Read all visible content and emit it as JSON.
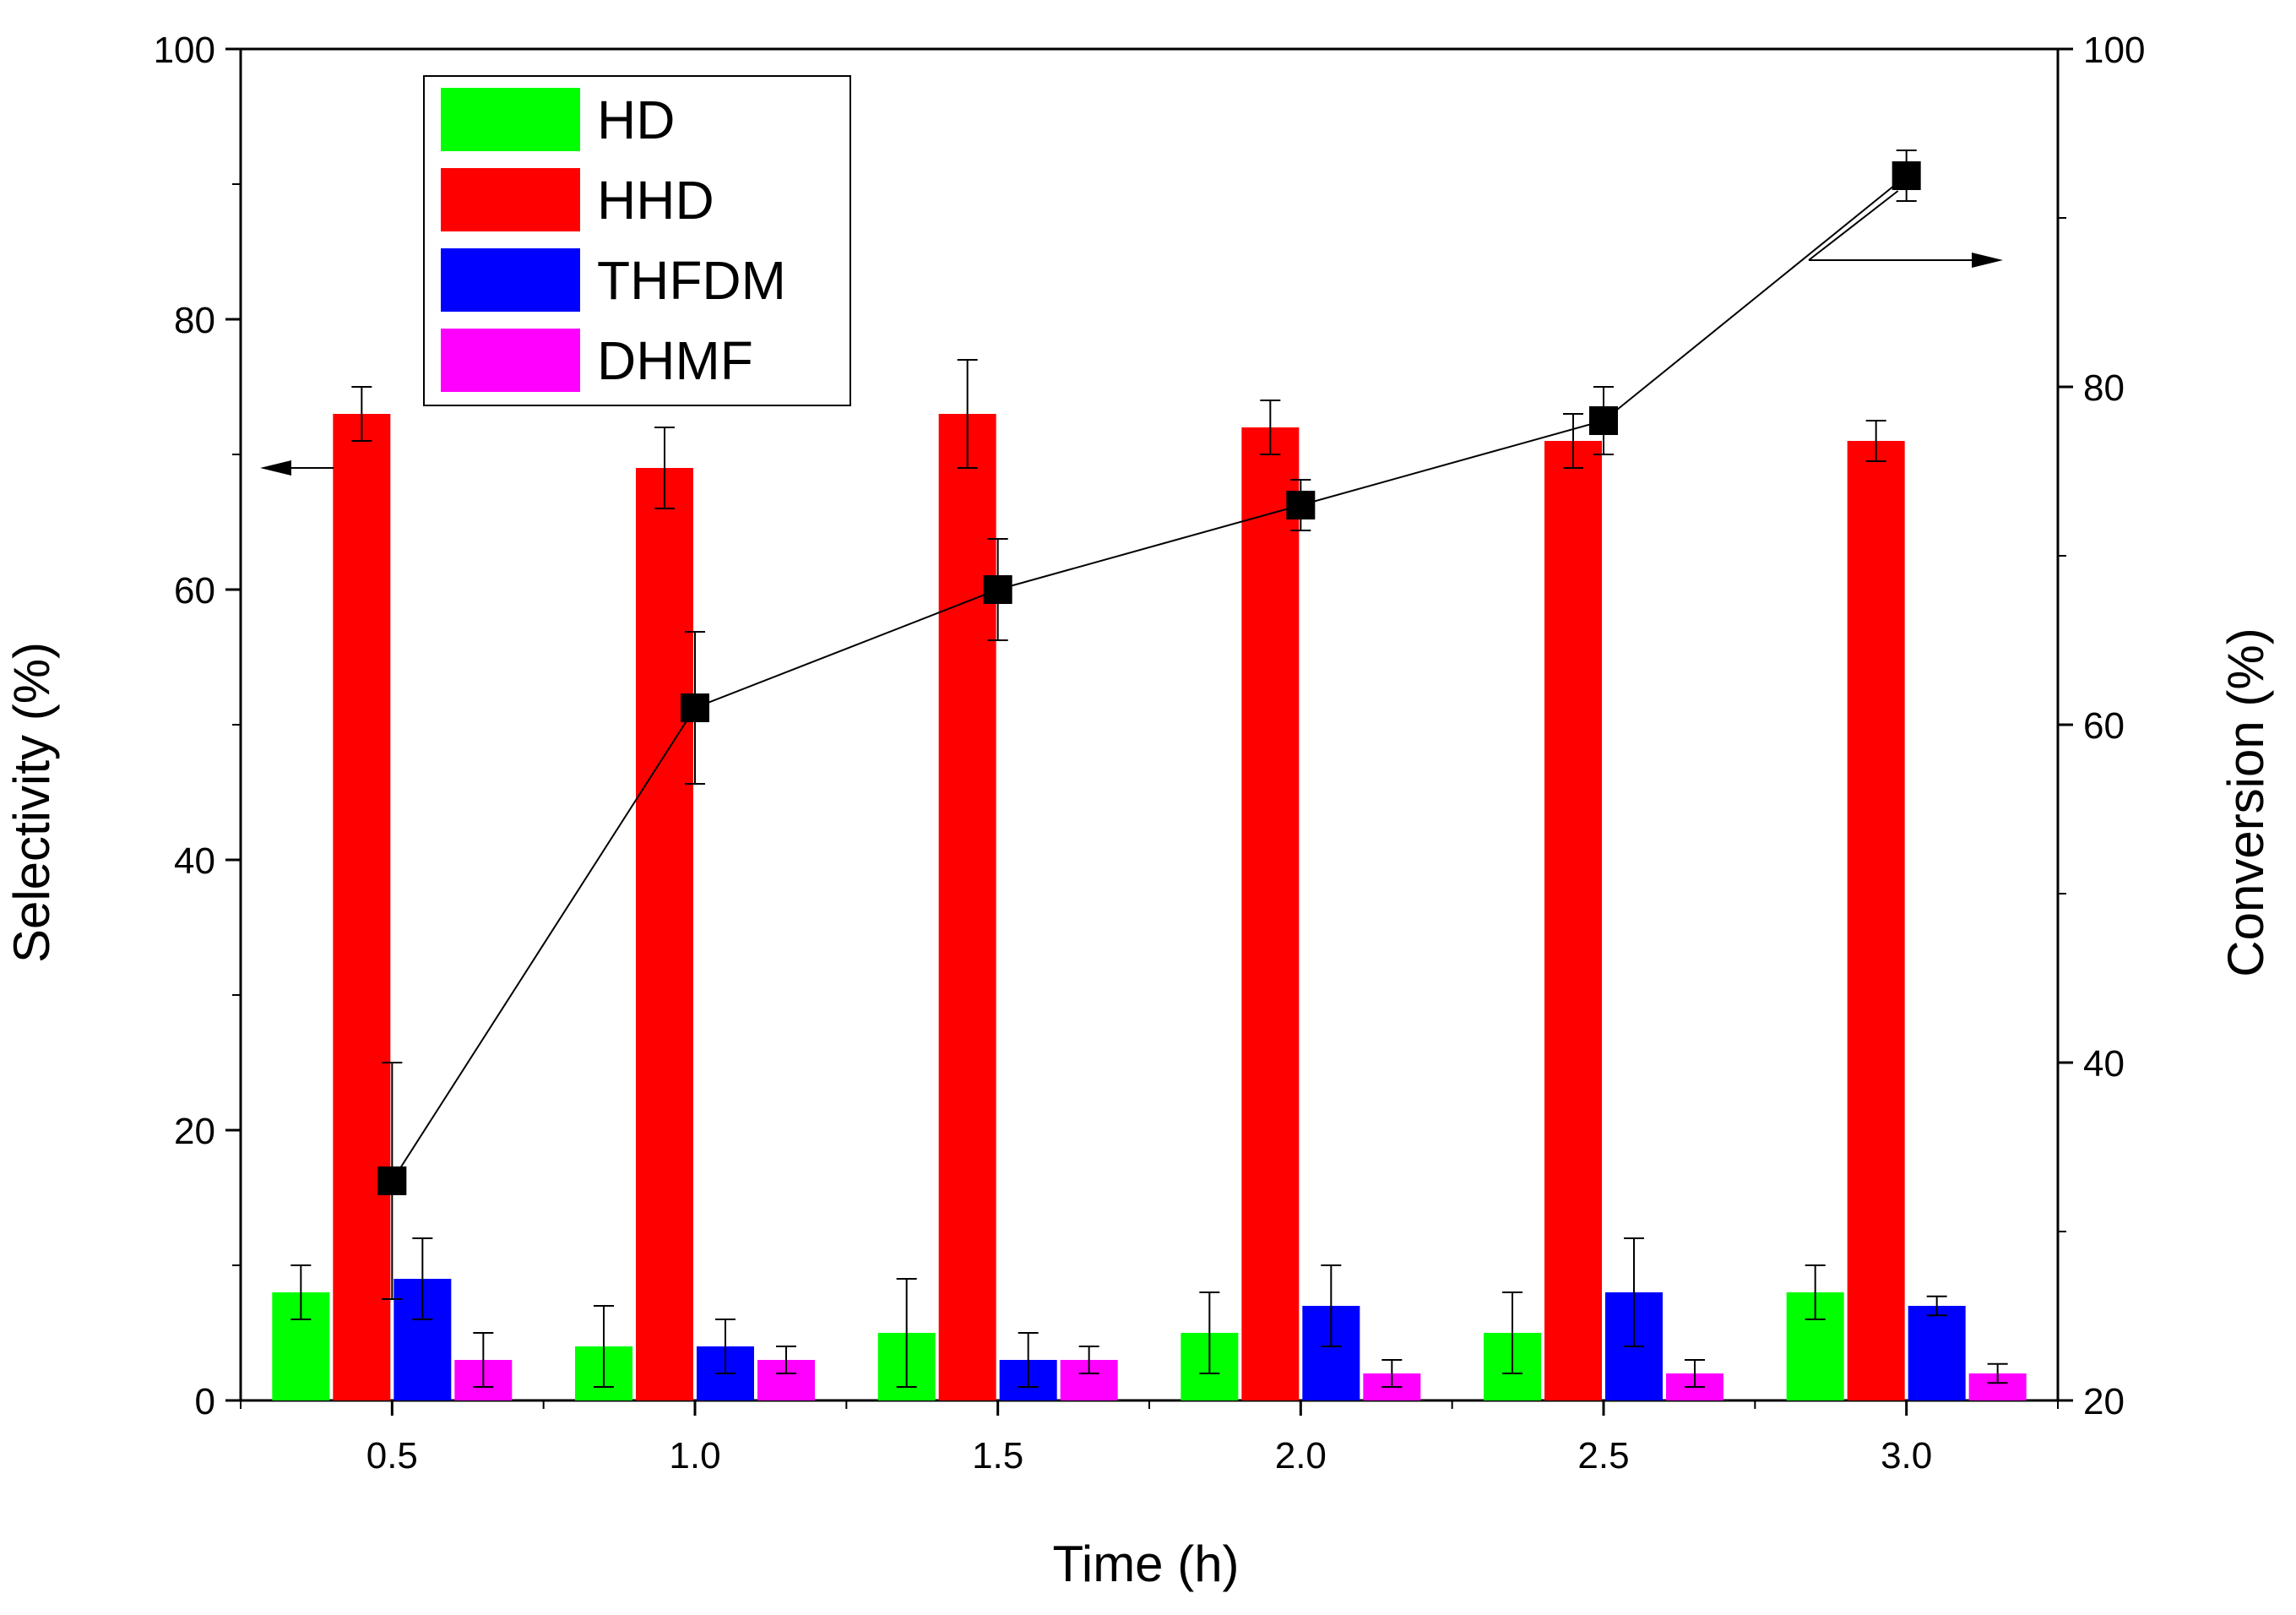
{
  "chart_data": {
    "type": "bar",
    "title": "",
    "xlabel": "Time (h)",
    "ylabel": "Selectivity (%)",
    "y2label": "Conversion (%)",
    "categories": [
      "0.5",
      "1.0",
      "1.5",
      "2.0",
      "2.5",
      "3.0"
    ],
    "ylim": [
      0,
      100
    ],
    "y2lim": [
      20,
      100
    ],
    "yticks": [
      "0",
      "20",
      "40",
      "60",
      "80",
      "100"
    ],
    "y2ticks": [
      "20",
      "40",
      "60",
      "80",
      "100"
    ],
    "legend_position": "top-left",
    "series": [
      {
        "name": "HD",
        "color": "#00ff00",
        "values": [
          8,
          4,
          5,
          5,
          5,
          8
        ],
        "errors": [
          2,
          3,
          4,
          3,
          3,
          2
        ]
      },
      {
        "name": "HHD",
        "color": "#ff0000",
        "values": [
          73,
          69,
          73,
          72,
          71,
          71
        ],
        "errors": [
          2,
          3,
          4,
          2,
          2,
          1.5
        ]
      },
      {
        "name": "THFDM",
        "color": "#0000ff",
        "values": [
          9,
          4,
          3,
          7,
          8,
          7
        ],
        "errors": [
          3,
          2,
          2,
          3,
          4,
          0.7
        ]
      },
      {
        "name": "DHMF",
        "color": "#ff00ff",
        "values": [
          3,
          3,
          3,
          2,
          2,
          2
        ],
        "errors": [
          2,
          1,
          1,
          1,
          1,
          0.7
        ]
      }
    ],
    "conversion": {
      "name": "Conversion",
      "axis": "right",
      "color": "#000000",
      "values": [
        33,
        61,
        68,
        73,
        78,
        92.5
      ],
      "errors": [
        7,
        4.5,
        3,
        1.5,
        2,
        1.5
      ]
    }
  }
}
